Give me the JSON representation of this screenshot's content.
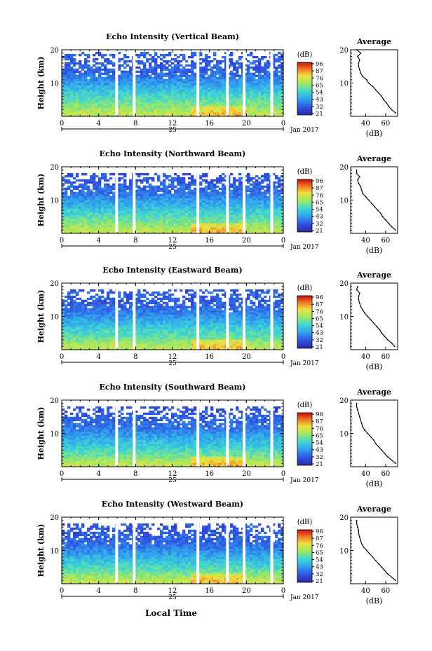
{
  "x_axis_label": "Local Time",
  "colorbar_unit": "(dB)",
  "colorbar_ticks": [
    "96",
    "87",
    "76",
    "65",
    "54",
    "43",
    "32",
    "21"
  ],
  "date_label": "Jan 2017",
  "day_label": "25",
  "chart_data": [
    {
      "type": "heatmap",
      "title": "Echo Intensity (Vertical Beam)",
      "ylabel": "Height (km)",
      "ylim": [
        0,
        20
      ],
      "y_ticks": [
        "20",
        "10"
      ],
      "x_ticks": [
        "0",
        "4",
        "8",
        "12",
        "16",
        "20",
        "0"
      ],
      "xlim": [
        0,
        24
      ],
      "color_scale": {
        "min": 21,
        "max": 96,
        "unit": "dB"
      },
      "gaps_hours": [
        [
          5.8,
          6.1
        ],
        [
          7.7,
          8.0
        ],
        [
          14.6,
          14.9
        ],
        [
          17.8,
          18.1
        ],
        [
          19.6,
          19.9
        ],
        [
          22.6,
          22.9
        ]
      ],
      "profile": {
        "title": "Average",
        "xlabel": "(dB)",
        "x_ticks": [
          "40",
          "60"
        ],
        "xlim": [
          25,
          72
        ],
        "y_ticks": [
          "20",
          "10"
        ],
        "height_km": [
          1,
          2,
          3,
          4,
          5,
          6,
          7,
          8,
          9,
          10,
          11,
          12,
          13,
          14,
          15,
          16,
          17,
          18,
          19,
          20
        ],
        "echo_db": [
          70,
          66,
          63,
          61,
          58,
          56,
          53,
          50,
          47,
          43,
          41,
          37,
          35,
          34,
          33,
          33,
          34,
          32,
          35,
          31
        ]
      }
    },
    {
      "type": "heatmap",
      "title": "Echo Intensity (Northward Beam)",
      "ylabel": "Height (km)",
      "ylim": [
        0,
        20
      ],
      "y_ticks": [
        "20",
        "10"
      ],
      "x_ticks": [
        "0",
        "4",
        "8",
        "12",
        "16",
        "20",
        "0"
      ],
      "xlim": [
        0,
        24
      ],
      "color_scale": {
        "min": 21,
        "max": 96,
        "unit": "dB"
      },
      "gaps_hours": [
        [
          5.8,
          6.1
        ],
        [
          7.7,
          8.0
        ],
        [
          14.6,
          14.9
        ],
        [
          17.8,
          18.1
        ],
        [
          19.6,
          19.9
        ],
        [
          22.6,
          22.9
        ]
      ],
      "profile": {
        "title": "Average",
        "xlabel": "(dB)",
        "x_ticks": [
          "40",
          "60"
        ],
        "xlim": [
          25,
          72
        ],
        "y_ticks": [
          "20",
          "10"
        ],
        "height_km": [
          1,
          2,
          3,
          4,
          5,
          6,
          7,
          8,
          9,
          10,
          11,
          12,
          13,
          14,
          15,
          16,
          17,
          18,
          19
        ],
        "echo_db": [
          70,
          66,
          63,
          60,
          57,
          55,
          52,
          49,
          46,
          43,
          40,
          37,
          36,
          35,
          33,
          32,
          34,
          31,
          31
        ]
      }
    },
    {
      "type": "heatmap",
      "title": "Echo Intensity (Eastward Beam)",
      "ylabel": "Height (km)",
      "ylim": [
        0,
        20
      ],
      "y_ticks": [
        "20",
        "10"
      ],
      "x_ticks": [
        "0",
        "4",
        "8",
        "12",
        "16",
        "20",
        "0"
      ],
      "xlim": [
        0,
        24
      ],
      "color_scale": {
        "min": 21,
        "max": 96,
        "unit": "dB"
      },
      "gaps_hours": [
        [
          5.8,
          6.1
        ],
        [
          7.7,
          8.0
        ],
        [
          14.6,
          14.9
        ],
        [
          17.8,
          18.1
        ],
        [
          19.6,
          19.9
        ],
        [
          22.6,
          22.9
        ]
      ],
      "profile": {
        "title": "Average",
        "xlabel": "(dB)",
        "x_ticks": [
          "40",
          "60"
        ],
        "xlim": [
          25,
          72
        ],
        "y_ticks": [
          "20",
          "10"
        ],
        "height_km": [
          1,
          2,
          3,
          4,
          5,
          6,
          7,
          8,
          9,
          10,
          11,
          12,
          13,
          14,
          15,
          16,
          17,
          18,
          19
        ],
        "echo_db": [
          69,
          66,
          62,
          59,
          56,
          54,
          51,
          48,
          45,
          42,
          39,
          37,
          35,
          34,
          33,
          33,
          34,
          31,
          32
        ]
      }
    },
    {
      "type": "heatmap",
      "title": "Echo Intensity (Southward Beam)",
      "ylabel": "Height (km)",
      "ylim": [
        0,
        20
      ],
      "y_ticks": [
        "20",
        "10"
      ],
      "x_ticks": [
        "0",
        "4",
        "8",
        "12",
        "16",
        "20",
        "0"
      ],
      "xlim": [
        0,
        24
      ],
      "color_scale": {
        "min": 21,
        "max": 96,
        "unit": "dB"
      },
      "gaps_hours": [
        [
          5.8,
          6.1
        ],
        [
          7.7,
          8.0
        ],
        [
          14.6,
          14.9
        ],
        [
          17.8,
          18.1
        ],
        [
          19.6,
          19.9
        ],
        [
          22.6,
          22.9
        ]
      ],
      "profile": {
        "title": "Average",
        "xlabel": "(dB)",
        "x_ticks": [
          "40",
          "60"
        ],
        "xlim": [
          25,
          72
        ],
        "y_ticks": [
          "20",
          "10"
        ],
        "height_km": [
          1,
          2,
          3,
          4,
          5,
          6,
          7,
          8,
          9,
          10,
          11,
          12,
          13,
          14,
          15,
          16,
          17,
          18,
          19
        ],
        "echo_db": [
          70,
          66,
          62,
          59,
          56,
          53,
          50,
          48,
          45,
          42,
          39,
          37,
          36,
          35,
          34,
          33,
          32,
          31,
          31
        ]
      }
    },
    {
      "type": "heatmap",
      "title": "Echo Intensity (Westward Beam)",
      "ylabel": "Height (km)",
      "ylim": [
        0,
        20
      ],
      "y_ticks": [
        "20",
        "10"
      ],
      "x_ticks": [
        "0",
        "4",
        "8",
        "12",
        "16",
        "20",
        "0"
      ],
      "xlim": [
        0,
        24
      ],
      "color_scale": {
        "min": 21,
        "max": 96,
        "unit": "dB"
      },
      "gaps_hours": [
        [
          5.8,
          6.1
        ],
        [
          7.7,
          8.0
        ],
        [
          14.6,
          14.9
        ],
        [
          17.8,
          18.1
        ],
        [
          19.6,
          19.9
        ],
        [
          22.6,
          22.9
        ]
      ],
      "profile": {
        "title": "Average",
        "xlabel": "(dB)",
        "x_ticks": [
          "40",
          "60"
        ],
        "xlim": [
          25,
          72
        ],
        "y_ticks": [
          "20",
          "10"
        ],
        "height_km": [
          1,
          2,
          3,
          4,
          5,
          6,
          7,
          8,
          9,
          10,
          11,
          12,
          13,
          14,
          15,
          16,
          17,
          18,
          19
        ],
        "echo_db": [
          70,
          66,
          62,
          59,
          56,
          53,
          50,
          47,
          44,
          41,
          38,
          36,
          35,
          34,
          33,
          33,
          32,
          31,
          31
        ]
      }
    }
  ]
}
